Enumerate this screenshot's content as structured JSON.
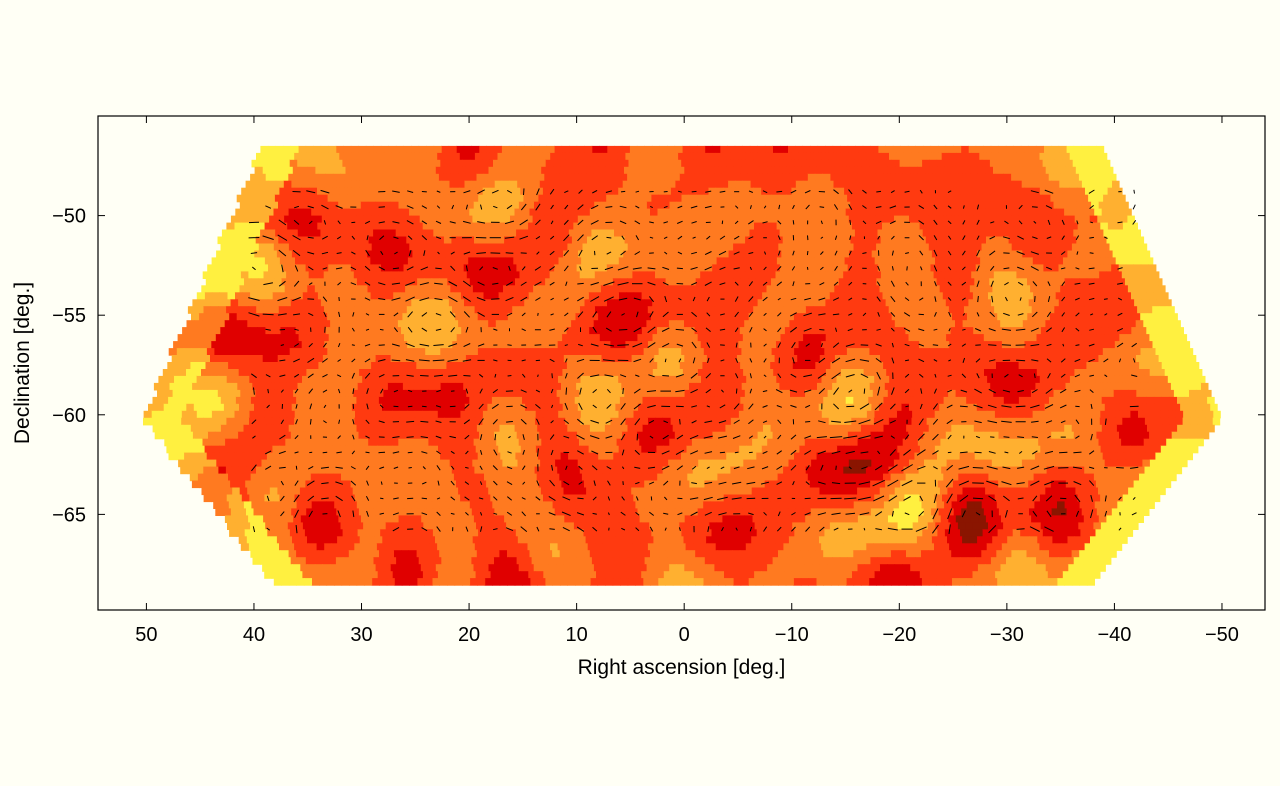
{
  "chart_data": {
    "type": "heatmap",
    "title": "",
    "xlabel": "Right ascension [deg.]",
    "ylabel": "Declination [deg.]",
    "xlim": [
      54.5,
      -54
    ],
    "ylim": [
      -69.8,
      -45
    ],
    "x_ticks": [
      50,
      40,
      30,
      20,
      10,
      0,
      -10,
      -20,
      -30,
      -40,
      -50
    ],
    "x_tick_labels": [
      "50",
      "40",
      "30",
      "20",
      "10",
      "0",
      "−10",
      "−20",
      "−30",
      "−40",
      "−50"
    ],
    "y_ticks": [
      -50,
      -55,
      -60,
      -65
    ],
    "y_tick_labels": [
      "−50",
      "−55",
      "−60",
      "−65"
    ],
    "grid": false,
    "colormap": [
      "#8a1500",
      "#e00000",
      "#ff3a10",
      "#ff7a20",
      "#ffb030",
      "#fff040"
    ],
    "overlay": "polarization-vectors",
    "overlay_color": "#000000",
    "footprint": {
      "ra_center": 0,
      "dec_min": -68.3,
      "dec_max": -46.5,
      "ra_half_width_top": 39,
      "ra_half_width_bottom": 38,
      "ra_half_width_mid": 50,
      "mid_dec": -60
    }
  }
}
